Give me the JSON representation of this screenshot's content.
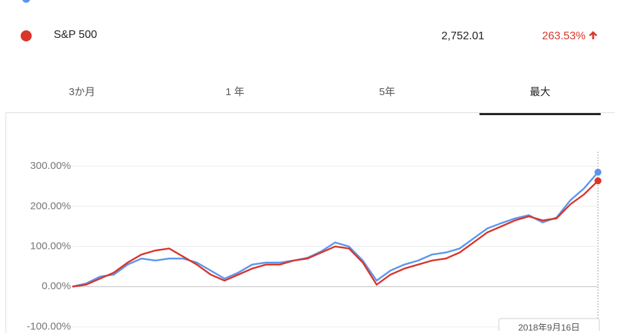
{
  "rows": [
    {
      "name": "S&P 500",
      "value": "2,752.01",
      "change": "263.53%"
    }
  ],
  "tabs": [
    "3か月",
    "1 年",
    "5年",
    "最大"
  ],
  "tooltip": "2018年9月16日",
  "chart_data": {
    "type": "line",
    "categories": [
      null,
      null,
      null,
      null,
      null,
      null,
      null,
      null,
      null,
      null,
      null,
      null,
      null,
      null,
      null,
      null,
      null,
      null,
      null,
      null,
      null,
      null,
      null,
      null,
      null,
      null,
      null,
      null,
      null,
      null,
      null,
      null,
      null,
      null,
      null,
      null,
      null,
      null,
      null
    ],
    "series": [
      {
        "color": "#5b95f0",
        "values": [
          0,
          8,
          25,
          30,
          55,
          70,
          65,
          70,
          70,
          60,
          40,
          20,
          35,
          55,
          60,
          60,
          65,
          72,
          88,
          110,
          100,
          65,
          15,
          40,
          55,
          65,
          80,
          85,
          95,
          120,
          145,
          158,
          170,
          178,
          160,
          172,
          215,
          245,
          285
        ]
      },
      {
        "name": "S&P 500",
        "color": "#d9352a",
        "values": [
          0,
          5,
          20,
          35,
          60,
          80,
          90,
          95,
          75,
          55,
          30,
          15,
          30,
          45,
          55,
          55,
          65,
          70,
          85,
          100,
          95,
          60,
          5,
          30,
          45,
          55,
          65,
          70,
          85,
          110,
          135,
          150,
          165,
          175,
          165,
          170,
          205,
          230,
          263.53
        ]
      }
    ],
    "ylim": [
      -100,
      330
    ],
    "yticks": [
      {
        "value": -100,
        "label": "-100.00%"
      },
      {
        "value": 0,
        "label": "0.00%"
      },
      {
        "value": 100,
        "label": "100.00%"
      },
      {
        "value": 200,
        "label": "200.00%"
      },
      {
        "value": 300,
        "label": "300.00%"
      }
    ],
    "grid": true
  }
}
